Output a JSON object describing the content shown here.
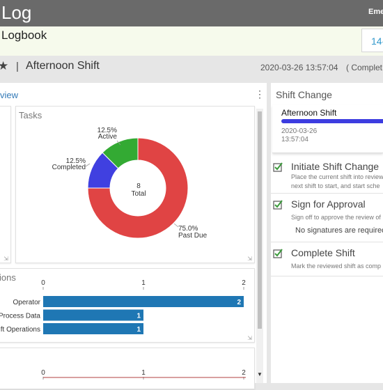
{
  "header": {
    "app_title": "Log",
    "user_name": "Eme"
  },
  "subheader": {
    "title": "Logbook",
    "date_fragment": "14-"
  },
  "shift_bar": {
    "separator": "|",
    "shift_name": "Afternoon Shift",
    "timestamp": "2020-03-26 13:57:04",
    "status_fragment": "( Complet"
  },
  "left_panel": {
    "title": "view"
  },
  "tasks_card": {
    "title": "Tasks",
    "center_value": "8",
    "center_label": "Total",
    "labels": {
      "past_due_pct": "75.0%",
      "past_due": "Past Due",
      "completed_pct": "12.5%",
      "completed": "Completed",
      "active_pct": "12.5%",
      "active": "Active"
    }
  },
  "operations_card": {
    "title": "ions"
  },
  "right_panel": {
    "title": "Shift Change",
    "card": {
      "shift_name": "Afternoon Shift",
      "date": "2020-03-26",
      "time": "13:57:04"
    },
    "steps": [
      {
        "title": "Initiate Shift Change",
        "desc1": "Place the current shift into review",
        "desc2": "next shift to start, and start sche"
      },
      {
        "title": "Sign for Approval",
        "desc1": "Sign off to approve the review of",
        "note": "No signatures are required"
      },
      {
        "title": "Complete Shift",
        "desc1": "Mark the reviewed shift as comp"
      }
    ]
  },
  "colors": {
    "past_due": "#e04444",
    "completed": "#4040e0",
    "active": "#33aa33",
    "bar": "#1f77b4",
    "accent": "#3399cc"
  },
  "icons": {
    "favorite": "star-icon",
    "menu": "kebab-icon",
    "step_done": "check-icon",
    "resize": "resize-icon"
  },
  "chart_data": [
    {
      "type": "pie",
      "title": "Tasks",
      "categories": [
        "Past Due",
        "Completed",
        "Active"
      ],
      "values": [
        75.0,
        12.5,
        12.5
      ],
      "unit": "%",
      "center_total": 8
    },
    {
      "type": "bar",
      "orientation": "horizontal",
      "title": "ions",
      "categories": [
        "Operator",
        "Process Data",
        "ft Operations"
      ],
      "values": [
        2,
        1,
        1
      ],
      "xlim": [
        0,
        2
      ],
      "ticks": [
        "0",
        "1",
        "2"
      ]
    },
    {
      "type": "bar",
      "orientation": "horizontal",
      "title": "",
      "categories": [],
      "values": [],
      "xlim": [
        0,
        2
      ],
      "ticks": [
        "0",
        "1",
        "2"
      ]
    }
  ]
}
